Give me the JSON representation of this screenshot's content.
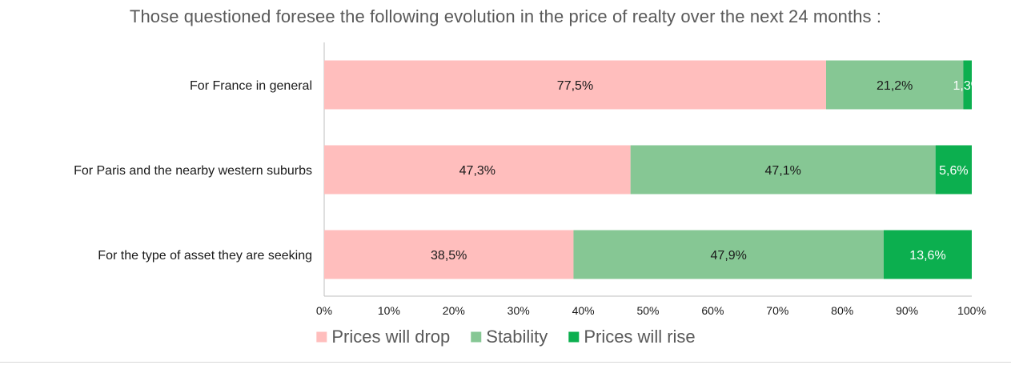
{
  "chart_data": {
    "type": "bar",
    "orientation": "horizontal",
    "stacked": true,
    "title": "Those questioned foresee the following evolution in the price of realty over the next 24 months :",
    "categories": [
      "For France in general",
      "For Paris and the nearby western suburbs",
      "For the type of asset they are seeking"
    ],
    "series": [
      {
        "name": "Prices will drop",
        "values": [
          77.5,
          47.3,
          38.5
        ],
        "labels": [
          "77,5%",
          "47,3%",
          "38,5%"
        ],
        "color": "#FFBEBD",
        "label_color": "#1a1a1a"
      },
      {
        "name": "Stability",
        "values": [
          21.2,
          47.1,
          47.9
        ],
        "labels": [
          "21,2%",
          "47,1%",
          "47,9%"
        ],
        "color": "#86C794",
        "label_color": "#1a1a1a"
      },
      {
        "name": "Prices will rise",
        "values": [
          1.3,
          5.6,
          13.6
        ],
        "labels": [
          "1,3%",
          "5,6%",
          "13,6%"
        ],
        "color": "#0CAF4F",
        "label_color": "#ffffff"
      }
    ],
    "xlim": [
      0,
      100
    ],
    "x_ticks": [
      "0%",
      "10%",
      "20%",
      "30%",
      "40%",
      "50%",
      "60%",
      "70%",
      "80%",
      "90%",
      "100%"
    ],
    "xlabel": "",
    "ylabel": "",
    "grid": false,
    "legend_position": "bottom"
  }
}
